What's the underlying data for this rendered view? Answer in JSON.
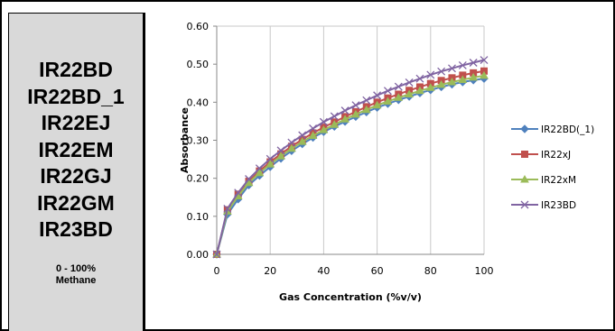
{
  "left_panel": {
    "models": [
      "IR22BD",
      "IR22BD_1",
      "IR22EJ",
      "IR22EM",
      "IR22GJ",
      "IR22GM",
      "IR23BD"
    ],
    "range_line1": "0 - 100%",
    "range_line2": "Methane"
  },
  "chart_data": {
    "type": "line",
    "title": "",
    "xlabel": "Gas Concentration (%v/v)",
    "ylabel": "Absorbance",
    "xlim": [
      0,
      100
    ],
    "ylim": [
      0,
      0.6
    ],
    "x_ticks": [
      "0",
      "20",
      "40",
      "60",
      "80",
      "100"
    ],
    "y_ticks": [
      "0.00",
      "0.10",
      "0.20",
      "0.30",
      "0.40",
      "0.50",
      "0.60"
    ],
    "grid": "vertical",
    "legend_position": "right",
    "x": [
      0,
      4,
      8,
      12,
      16,
      20,
      24,
      28,
      32,
      36,
      40,
      44,
      48,
      52,
      56,
      60,
      64,
      68,
      72,
      76,
      80,
      84,
      88,
      92,
      96,
      100
    ],
    "series": [
      {
        "name": "IR22BD(_1)",
        "color": "#4f81bd",
        "marker": "diamond",
        "values": [
          0,
          0.105,
          0.145,
          0.182,
          0.207,
          0.23,
          0.252,
          0.272,
          0.29,
          0.307,
          0.322,
          0.336,
          0.349,
          0.362,
          0.374,
          0.386,
          0.396,
          0.406,
          0.415,
          0.424,
          0.432,
          0.44,
          0.447,
          0.453,
          0.458,
          0.462
        ]
      },
      {
        "name": "IR22xJ",
        "color": "#c0504d",
        "marker": "square",
        "values": [
          0,
          0.117,
          0.158,
          0.192,
          0.219,
          0.243,
          0.264,
          0.284,
          0.302,
          0.319,
          0.334,
          0.348,
          0.362,
          0.375,
          0.388,
          0.4,
          0.411,
          0.421,
          0.431,
          0.44,
          0.449,
          0.457,
          0.464,
          0.471,
          0.477,
          0.482
        ]
      },
      {
        "name": "IR22xM",
        "color": "#9bbb59",
        "marker": "triangle",
        "values": [
          0,
          0.113,
          0.153,
          0.188,
          0.214,
          0.237,
          0.258,
          0.278,
          0.296,
          0.312,
          0.327,
          0.341,
          0.355,
          0.368,
          0.38,
          0.392,
          0.402,
          0.412,
          0.421,
          0.43,
          0.438,
          0.446,
          0.453,
          0.459,
          0.465,
          0.47
        ]
      },
      {
        "name": "IR23BD",
        "color": "#8064a2",
        "marker": "x",
        "values": [
          0,
          0.12,
          0.162,
          0.198,
          0.226,
          0.251,
          0.273,
          0.294,
          0.313,
          0.331,
          0.348,
          0.363,
          0.378,
          0.392,
          0.405,
          0.418,
          0.43,
          0.441,
          0.452,
          0.462,
          0.472,
          0.481,
          0.489,
          0.497,
          0.504,
          0.511
        ]
      }
    ]
  }
}
